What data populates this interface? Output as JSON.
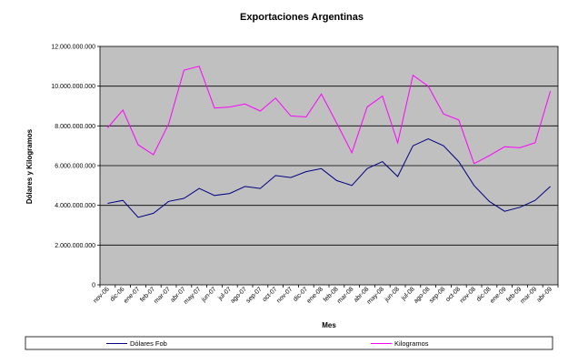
{
  "chart_data": {
    "type": "line",
    "title": "Exportaciones Argentinas",
    "xlabel": "Mes",
    "ylabel": "Dólares y Kilogramos",
    "ylim": [
      0,
      12000000000
    ],
    "y_ticks": [
      "0",
      "2.000.000.000",
      "4.000.000.000",
      "6.000.000.000",
      "8.000.000.000",
      "10.000.000.000",
      "12.000.000.000"
    ],
    "y_tick_values": [
      0,
      2000000000,
      4000000000,
      6000000000,
      8000000000,
      10000000000,
      12000000000
    ],
    "grid": true,
    "legend_position": "bottom",
    "plot_background": "#c0c0c0",
    "categories": [
      "nov-06",
      "dic-06",
      "ene-07",
      "feb-07",
      "mar-07",
      "abr-07",
      "may-07",
      "jun-07",
      "jul-07",
      "ago-07",
      "sep-07",
      "oct-07",
      "nov-07",
      "dic-07",
      "ene-08",
      "feb-08",
      "mar-08",
      "abr-08",
      "may-08",
      "jun-08",
      "jul-08",
      "ago-08",
      "sep-08",
      "oct-08",
      "nov-08",
      "dic-08",
      "ene-09",
      "feb-09",
      "mar-09",
      "abr-09"
    ],
    "series": [
      {
        "name": "Dólares Fob",
        "color": "#000080",
        "values": [
          4100000000,
          4250000000,
          3400000000,
          3600000000,
          4200000000,
          4350000000,
          4850000000,
          4500000000,
          4600000000,
          4950000000,
          4850000000,
          5500000000,
          5400000000,
          5700000000,
          5850000000,
          5250000000,
          5000000000,
          5850000000,
          6200000000,
          5450000000,
          7000000000,
          7350000000,
          7000000000,
          6200000000,
          5000000000,
          4200000000,
          3700000000,
          3900000000,
          4250000000,
          4950000000
        ]
      },
      {
        "name": "Kilogramos",
        "color": "#ff00ff",
        "values": [
          7900000000,
          8800000000,
          7050000000,
          6550000000,
          8100000000,
          10800000000,
          11000000000,
          8900000000,
          8950000000,
          9100000000,
          8750000000,
          9400000000,
          8500000000,
          8450000000,
          9600000000,
          8150000000,
          6650000000,
          8950000000,
          9500000000,
          7150000000,
          10550000000,
          10000000000,
          8600000000,
          8300000000,
          6100000000,
          6500000000,
          6950000000,
          6900000000,
          7150000000,
          9750000000
        ]
      }
    ]
  }
}
